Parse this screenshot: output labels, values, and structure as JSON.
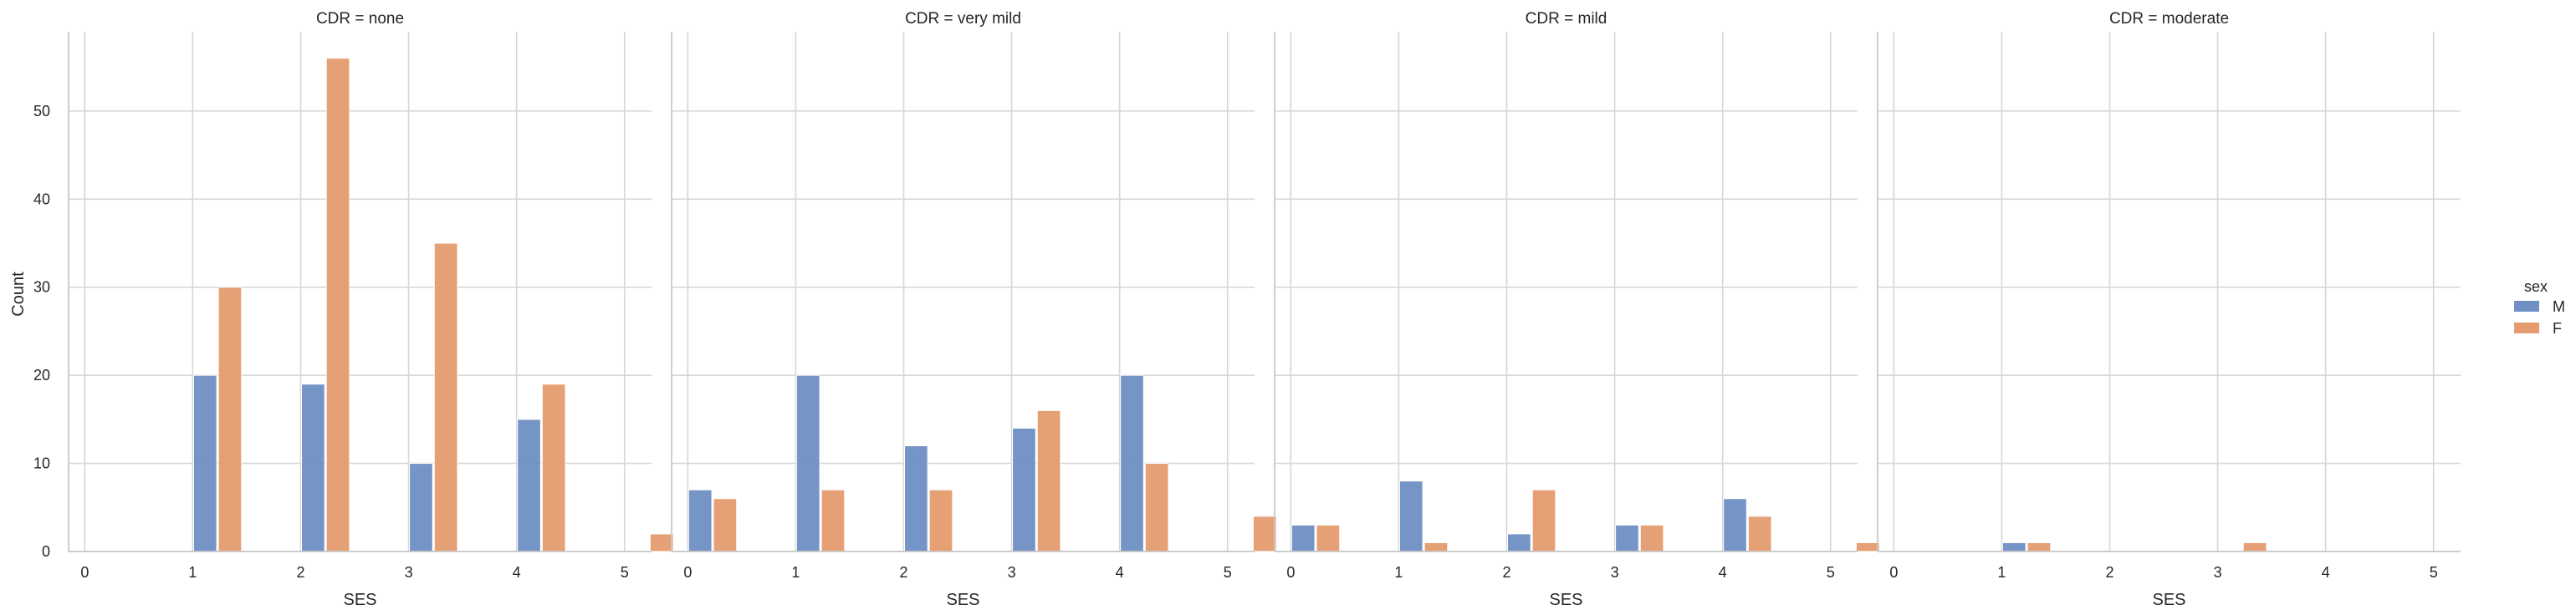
{
  "chart_data": {
    "type": "bar",
    "x_values": [
      0,
      1,
      2,
      3,
      4,
      5
    ],
    "xlabel": "SES",
    "ylabel": "Count",
    "xlim": [
      -0.15,
      5.25
    ],
    "ylim": [
      0,
      59
    ],
    "yticks": [
      0,
      10,
      20,
      30,
      40,
      50
    ],
    "xticks": [
      0,
      1,
      2,
      3,
      4,
      5
    ],
    "grid": true,
    "legend": {
      "title": "sex",
      "placement": "right",
      "entries": [
        "M",
        "F"
      ]
    },
    "colors": {
      "M": "#6f8fc4",
      "F": "#e59b6f"
    },
    "panels": [
      {
        "title": "CDR = none",
        "series": [
          {
            "name": "M",
            "values": [
              0,
              20,
              19,
              10,
              15,
              0
            ]
          },
          {
            "name": "F",
            "values": [
              0,
              30,
              56,
              35,
              19,
              2
            ]
          }
        ]
      },
      {
        "title": "CDR = very mild",
        "series": [
          {
            "name": "M",
            "values": [
              7,
              20,
              12,
              14,
              20,
              0
            ]
          },
          {
            "name": "F",
            "values": [
              6,
              7,
              7,
              16,
              10,
              4
            ]
          }
        ]
      },
      {
        "title": "CDR = mild",
        "series": [
          {
            "name": "M",
            "values": [
              3,
              8,
              2,
              3,
              6,
              0
            ]
          },
          {
            "name": "F",
            "values": [
              3,
              1,
              7,
              3,
              4,
              1
            ]
          }
        ]
      },
      {
        "title": "CDR = moderate",
        "series": [
          {
            "name": "M",
            "values": [
              0,
              1,
              0,
              0,
              0,
              0
            ]
          },
          {
            "name": "F",
            "values": [
              0,
              1,
              0,
              1,
              0,
              0
            ]
          }
        ]
      }
    ]
  }
}
